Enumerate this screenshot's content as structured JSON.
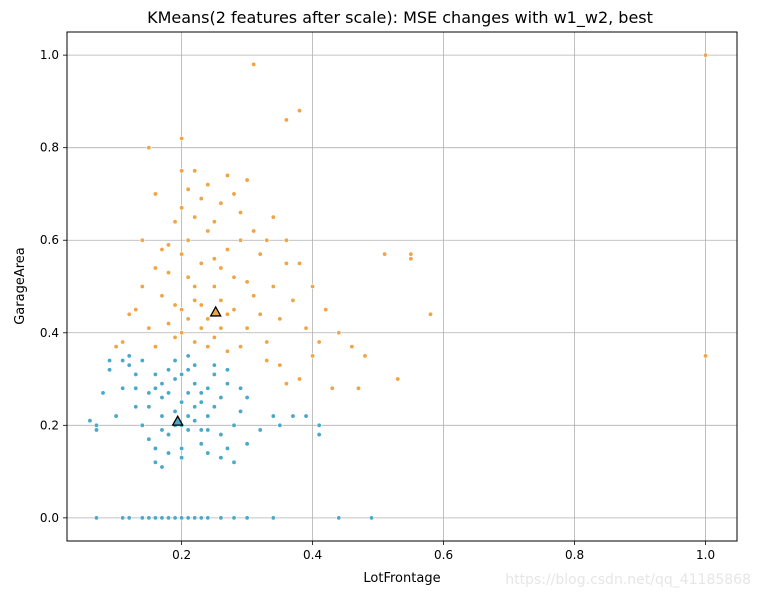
{
  "chart_data": {
    "type": "scatter",
    "title": "KMeans(2 features after scale): MSE changes with w1_w2, best",
    "xlabel": "LotFrontage",
    "ylabel": "GarageArea",
    "xlim": [
      0.025,
      1.048
    ],
    "ylim": [
      -0.05,
      1.05
    ],
    "xticks": [
      0.2,
      0.4,
      0.6,
      0.8,
      1.0
    ],
    "xtick_labels": [
      "0.2",
      "0.4",
      "0.6",
      "0.8",
      "1.0"
    ],
    "yticks": [
      0.0,
      0.2,
      0.4,
      0.6,
      0.8,
      1.0
    ],
    "ytick_labels": [
      "0.0",
      "0.2",
      "0.4",
      "0.6",
      "0.8",
      "1.0"
    ],
    "grid": true,
    "legend": false,
    "series": [
      {
        "color": "#4aa8c9",
        "marker": "dot",
        "points": [
          [
            0.17,
            0.29
          ],
          [
            0.19,
            0.23
          ],
          [
            0.21,
            0.19
          ],
          [
            0.23,
            0.27
          ],
          [
            0.15,
            0.24
          ],
          [
            0.25,
            0.31
          ],
          [
            0.2,
            0.15
          ],
          [
            0.13,
            0.28
          ],
          [
            0.28,
            0.2
          ],
          [
            0.22,
            0.33
          ],
          [
            0.18,
            0.18
          ],
          [
            0.24,
            0.22
          ],
          [
            0.16,
            0.31
          ],
          [
            0.3,
            0.26
          ],
          [
            0.12,
            0.33
          ],
          [
            0.21,
            0.27
          ],
          [
            0.19,
            0.3
          ],
          [
            0.26,
            0.18
          ],
          [
            0.14,
            0.2
          ],
          [
            0.23,
            0.16
          ],
          [
            0.17,
            0.22
          ],
          [
            0.27,
            0.29
          ],
          [
            0.2,
            0.25
          ],
          [
            0.22,
            0.21
          ],
          [
            0.18,
            0.27
          ],
          [
            0.15,
            0.17
          ],
          [
            0.25,
            0.24
          ],
          [
            0.21,
            0.32
          ],
          [
            0.24,
            0.28
          ],
          [
            0.16,
            0.15
          ],
          [
            0.19,
            0.2
          ],
          [
            0.29,
            0.23
          ],
          [
            0.13,
            0.24
          ],
          [
            0.2,
            0.31
          ],
          [
            0.23,
            0.19
          ],
          [
            0.26,
            0.26
          ],
          [
            0.18,
            0.14
          ],
          [
            0.22,
            0.29
          ],
          [
            0.17,
            0.26
          ],
          [
            0.21,
            0.22
          ],
          [
            0.11,
            0.28
          ],
          [
            0.1,
            0.22
          ],
          [
            0.09,
            0.32
          ],
          [
            0.08,
            0.27
          ],
          [
            0.07,
            0.2
          ],
          [
            0.07,
            0.19
          ],
          [
            0.06,
            0.21
          ],
          [
            0.16,
            0.12
          ],
          [
            0.17,
            0.11
          ],
          [
            0.2,
            0.13
          ],
          [
            0.24,
            0.14
          ],
          [
            0.27,
            0.15
          ],
          [
            0.28,
            0.12
          ],
          [
            0.26,
            0.13
          ],
          [
            0.3,
            0.16
          ],
          [
            0.32,
            0.19
          ],
          [
            0.34,
            0.22
          ],
          [
            0.35,
            0.2
          ],
          [
            0.37,
            0.22
          ],
          [
            0.39,
            0.22
          ],
          [
            0.41,
            0.2
          ],
          [
            0.41,
            0.18
          ],
          [
            0.14,
            0.34
          ],
          [
            0.12,
            0.35
          ],
          [
            0.11,
            0.34
          ],
          [
            0.09,
            0.34
          ],
          [
            0.15,
            0.27
          ],
          [
            0.13,
            0.31
          ],
          [
            0.25,
            0.33
          ],
          [
            0.27,
            0.32
          ],
          [
            0.23,
            0.25
          ],
          [
            0.19,
            0.34
          ],
          [
            0.21,
            0.35
          ],
          [
            0.18,
            0.32
          ],
          [
            0.16,
            0.28
          ],
          [
            0.24,
            0.19
          ],
          [
            0.29,
            0.28
          ],
          [
            0.22,
            0.24
          ],
          [
            0.2,
            0.2
          ],
          [
            0.17,
            0.19
          ],
          [
            0.07,
            0.0
          ],
          [
            0.11,
            0.0
          ],
          [
            0.12,
            0.0
          ],
          [
            0.14,
            0.0
          ],
          [
            0.15,
            0.0
          ],
          [
            0.16,
            0.0
          ],
          [
            0.17,
            0.0
          ],
          [
            0.18,
            0.0
          ],
          [
            0.19,
            0.0
          ],
          [
            0.2,
            0.0
          ],
          [
            0.21,
            0.0
          ],
          [
            0.22,
            0.0
          ],
          [
            0.23,
            0.0
          ],
          [
            0.24,
            0.0
          ],
          [
            0.26,
            0.0
          ],
          [
            0.28,
            0.0
          ],
          [
            0.3,
            0.0
          ],
          [
            0.34,
            0.0
          ],
          [
            0.44,
            0.0
          ],
          [
            0.49,
            0.0
          ]
        ]
      },
      {
        "color": "#f0a443",
        "marker": "dot",
        "points": [
          [
            0.2,
            0.45
          ],
          [
            0.22,
            0.38
          ],
          [
            0.25,
            0.5
          ],
          [
            0.18,
            0.42
          ],
          [
            0.27,
            0.36
          ],
          [
            0.23,
            0.55
          ],
          [
            0.3,
            0.41
          ],
          [
            0.21,
            0.6
          ],
          [
            0.26,
            0.47
          ],
          [
            0.19,
            0.39
          ],
          [
            0.24,
            0.43
          ],
          [
            0.28,
            0.52
          ],
          [
            0.17,
            0.48
          ],
          [
            0.32,
            0.44
          ],
          [
            0.22,
            0.5
          ],
          [
            0.25,
            0.39
          ],
          [
            0.2,
            0.57
          ],
          [
            0.29,
            0.37
          ],
          [
            0.23,
            0.46
          ],
          [
            0.15,
            0.41
          ],
          [
            0.27,
            0.58
          ],
          [
            0.21,
            0.43
          ],
          [
            0.24,
            0.62
          ],
          [
            0.18,
            0.53
          ],
          [
            0.31,
            0.48
          ],
          [
            0.26,
            0.41
          ],
          [
            0.33,
            0.38
          ],
          [
            0.19,
            0.46
          ],
          [
            0.28,
            0.45
          ],
          [
            0.22,
            0.65
          ],
          [
            0.16,
            0.37
          ],
          [
            0.25,
            0.56
          ],
          [
            0.3,
            0.51
          ],
          [
            0.2,
            0.4
          ],
          [
            0.23,
            0.41
          ],
          [
            0.27,
            0.44
          ],
          [
            0.24,
            0.37
          ],
          [
            0.21,
            0.52
          ],
          [
            0.35,
            0.43
          ],
          [
            0.13,
            0.45
          ],
          [
            0.29,
            0.6
          ],
          [
            0.26,
            0.54
          ],
          [
            0.22,
            0.47
          ],
          [
            0.18,
            0.59
          ],
          [
            0.32,
            0.57
          ],
          [
            0.25,
            0.64
          ],
          [
            0.2,
            0.67
          ],
          [
            0.28,
            0.7
          ],
          [
            0.24,
            0.72
          ],
          [
            0.27,
            0.74
          ],
          [
            0.22,
            0.75
          ],
          [
            0.3,
            0.73
          ],
          [
            0.34,
            0.65
          ],
          [
            0.36,
            0.6
          ],
          [
            0.38,
            0.55
          ],
          [
            0.4,
            0.5
          ],
          [
            0.42,
            0.45
          ],
          [
            0.44,
            0.4
          ],
          [
            0.46,
            0.37
          ],
          [
            0.48,
            0.35
          ],
          [
            0.43,
            0.28
          ],
          [
            0.47,
            0.28
          ],
          [
            0.53,
            0.3
          ],
          [
            0.51,
            0.57
          ],
          [
            0.55,
            0.57
          ],
          [
            0.55,
            0.56
          ],
          [
            0.58,
            0.44
          ],
          [
            0.36,
            0.86
          ],
          [
            0.38,
            0.88
          ],
          [
            0.31,
            0.98
          ],
          [
            0.15,
            0.8
          ],
          [
            0.2,
            0.82
          ],
          [
            0.16,
            0.7
          ],
          [
            0.2,
            0.75
          ],
          [
            0.14,
            0.6
          ],
          [
            0.12,
            0.44
          ],
          [
            0.11,
            0.38
          ],
          [
            0.1,
            0.37
          ],
          [
            0.35,
            0.33
          ],
          [
            0.38,
            0.3
          ],
          [
            0.4,
            0.35
          ],
          [
            0.39,
            0.41
          ],
          [
            0.41,
            0.38
          ],
          [
            0.37,
            0.47
          ],
          [
            0.34,
            0.5
          ],
          [
            0.36,
            0.55
          ],
          [
            0.33,
            0.6
          ],
          [
            0.31,
            0.62
          ],
          [
            0.29,
            0.66
          ],
          [
            0.26,
            0.68
          ],
          [
            0.23,
            0.69
          ],
          [
            0.21,
            0.71
          ],
          [
            0.19,
            0.64
          ],
          [
            0.17,
            0.58
          ],
          [
            0.16,
            0.54
          ],
          [
            0.14,
            0.5
          ],
          [
            1.0,
            1.0
          ],
          [
            1.0,
            0.35
          ],
          [
            0.36,
            0.29
          ],
          [
            0.33,
            0.34
          ]
        ]
      }
    ],
    "centroids": [
      {
        "x": 0.194,
        "y": 0.209,
        "color": "#4aa8c9",
        "marker": "triangle"
      },
      {
        "x": 0.252,
        "y": 0.445,
        "color": "#f0a443",
        "marker": "triangle"
      }
    ]
  },
  "watermark": "https://blog.csdn.net/qq_41185868"
}
